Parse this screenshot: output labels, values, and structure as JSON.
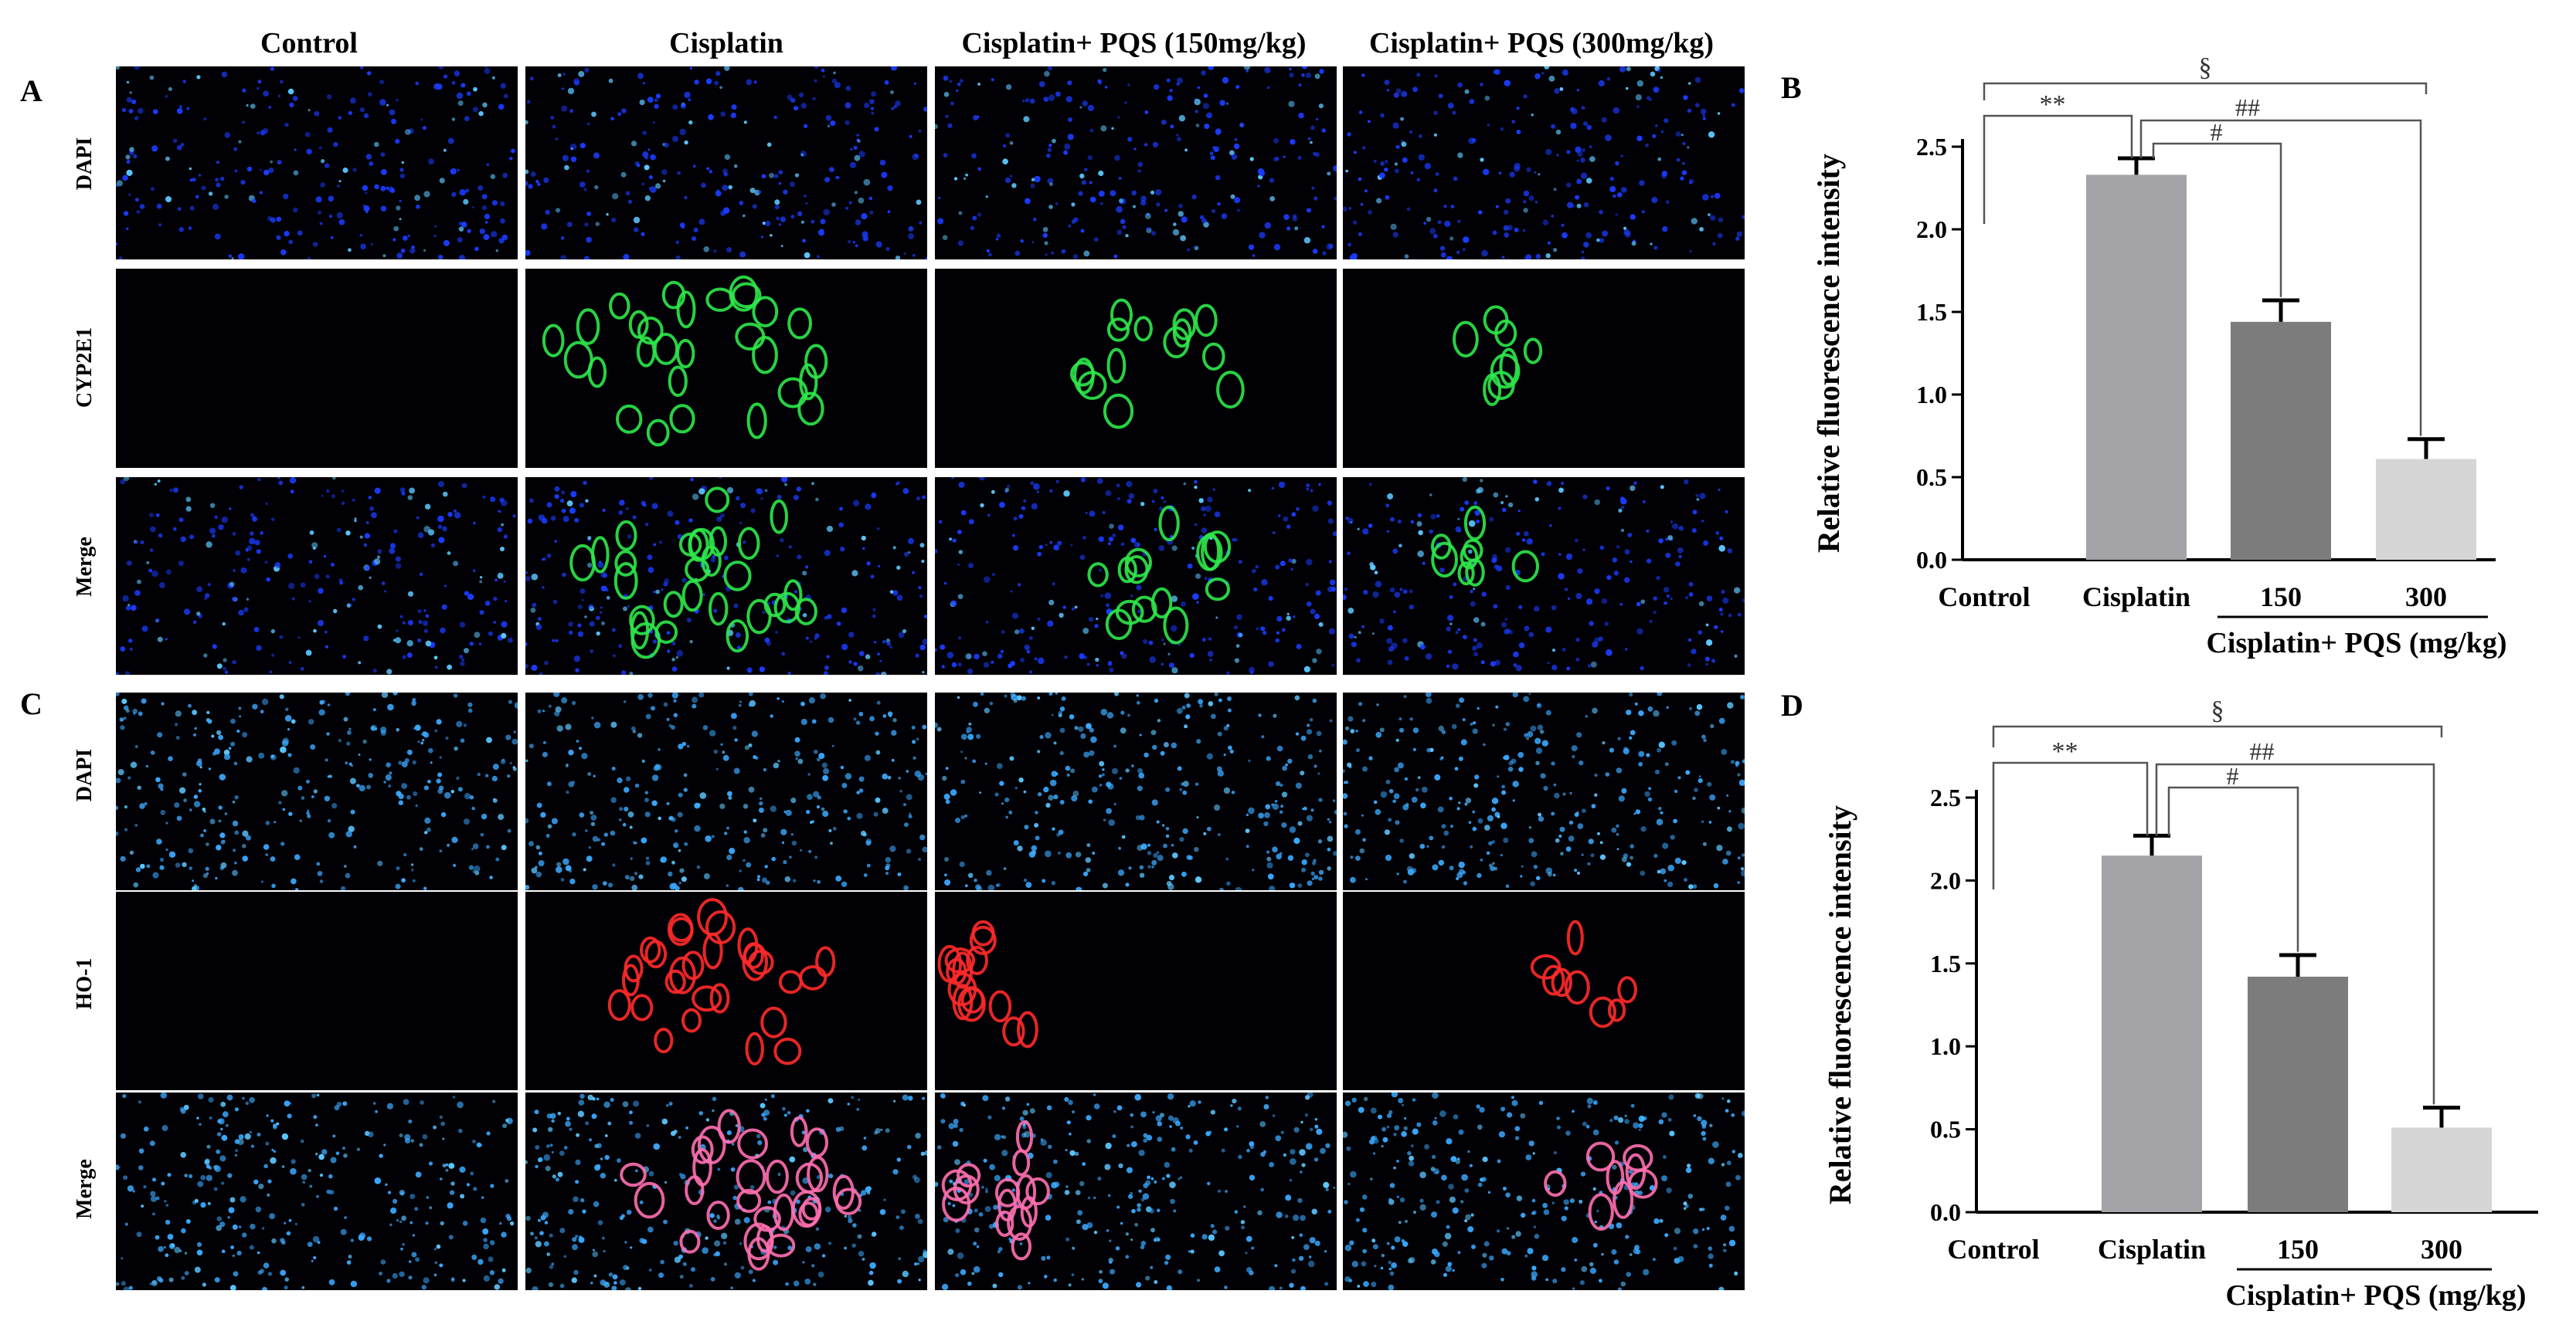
{
  "micrograph_panels": [
    {
      "letter": "A",
      "columns": [
        "Control",
        "Cisplatin",
        "Cisplatin+ PQS (150mg/kg)",
        "Cisplatin+ PQS (300mg/kg)"
      ],
      "rows": [
        "DAPI",
        "CYP2E1",
        "Merge"
      ],
      "marker_color": "#2ee84a"
    },
    {
      "letter": "C",
      "columns": [
        "Control",
        "Cisplatin",
        "Cisplatin+ PQS (150mg/kg)",
        "Cisplatin+ PQS (300mg/kg)"
      ],
      "rows": [
        "DAPI",
        "HO-1",
        "Merge"
      ],
      "marker_color": "#ff2a2a"
    }
  ],
  "colors": {
    "nuclei_blue": "#1a3cff",
    "nuclei_cyan": "#3aa9ff",
    "bar_cisplatin": "#a4a4a8",
    "bar_150": "#7c7c7c",
    "bar_300": "#d6d6d6",
    "axis": "#000000",
    "bracket": "#555555"
  },
  "chart_data": [
    {
      "type": "bar",
      "panel": "B",
      "categories": [
        "Control",
        "Cisplatin",
        "150",
        "300"
      ],
      "values": [
        0.0,
        2.33,
        1.44,
        0.61
      ],
      "errors": [
        0.0,
        0.1,
        0.13,
        0.12
      ],
      "ylabel": "Relative fluorescence intensity",
      "xgroup_label": "Cisplatin+ PQS (mg/kg)",
      "ylim": [
        0,
        2.5
      ],
      "yticks": [
        "0.0",
        "0.5",
        "1.0",
        "1.5",
        "2.0",
        "2.5"
      ],
      "annotations": [
        "**",
        "§",
        "##",
        "#"
      ]
    },
    {
      "type": "bar",
      "panel": "D",
      "categories": [
        "Control",
        "Cisplatin",
        "150",
        "300"
      ],
      "values": [
        0.0,
        2.15,
        1.42,
        0.51
      ],
      "errors": [
        0.0,
        0.12,
        0.13,
        0.12
      ],
      "ylabel": "Relative fluorescence intensity",
      "xgroup_label": "Cisplatin+ PQS (mg/kg)",
      "ylim": [
        0,
        2.5
      ],
      "yticks": [
        "0.0",
        "0.5",
        "1.0",
        "1.5",
        "2.0",
        "2.5"
      ],
      "annotations": [
        "**",
        "§",
        "##",
        "#"
      ]
    }
  ]
}
